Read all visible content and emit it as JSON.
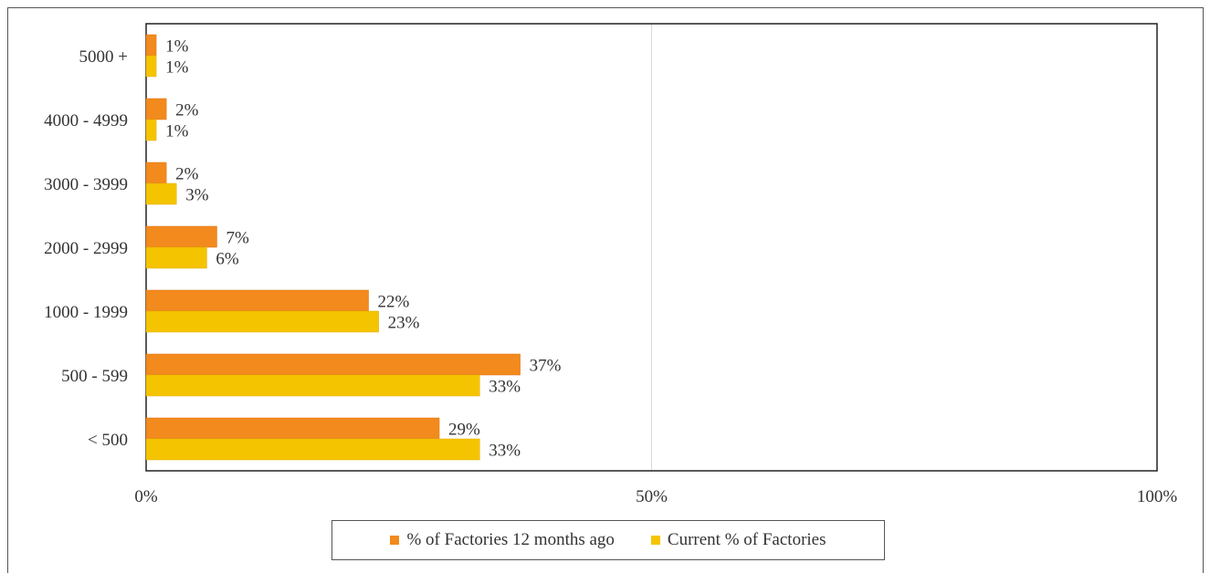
{
  "chart_data": {
    "type": "bar",
    "orientation": "horizontal",
    "categories": [
      "5000 +",
      "4000 - 4999",
      "3000 - 3999",
      "2000 - 2999",
      "1000 - 1999",
      "500 - 599",
      "< 500"
    ],
    "series": [
      {
        "name": "% of Factories 12 months ago",
        "color": "#f28a1e",
        "values": [
          1,
          2,
          2,
          7,
          22,
          37,
          29
        ],
        "labels": [
          "1%",
          "2%",
          "2%",
          "7%",
          "22%",
          "37%",
          "29%"
        ]
      },
      {
        "name": "Current % of Factories",
        "color": "#f5c400",
        "values": [
          1,
          1,
          3,
          6,
          23,
          33,
          33
        ],
        "labels": [
          "1%",
          "1%",
          "3%",
          "6%",
          "23%",
          "33%",
          "33%"
        ]
      }
    ],
    "xlim": [
      0,
      100
    ],
    "xticks": [
      0,
      50,
      100
    ],
    "xtick_labels": [
      "0%",
      "50%",
      "100%"
    ],
    "grid": true,
    "legend_position": "bottom"
  }
}
